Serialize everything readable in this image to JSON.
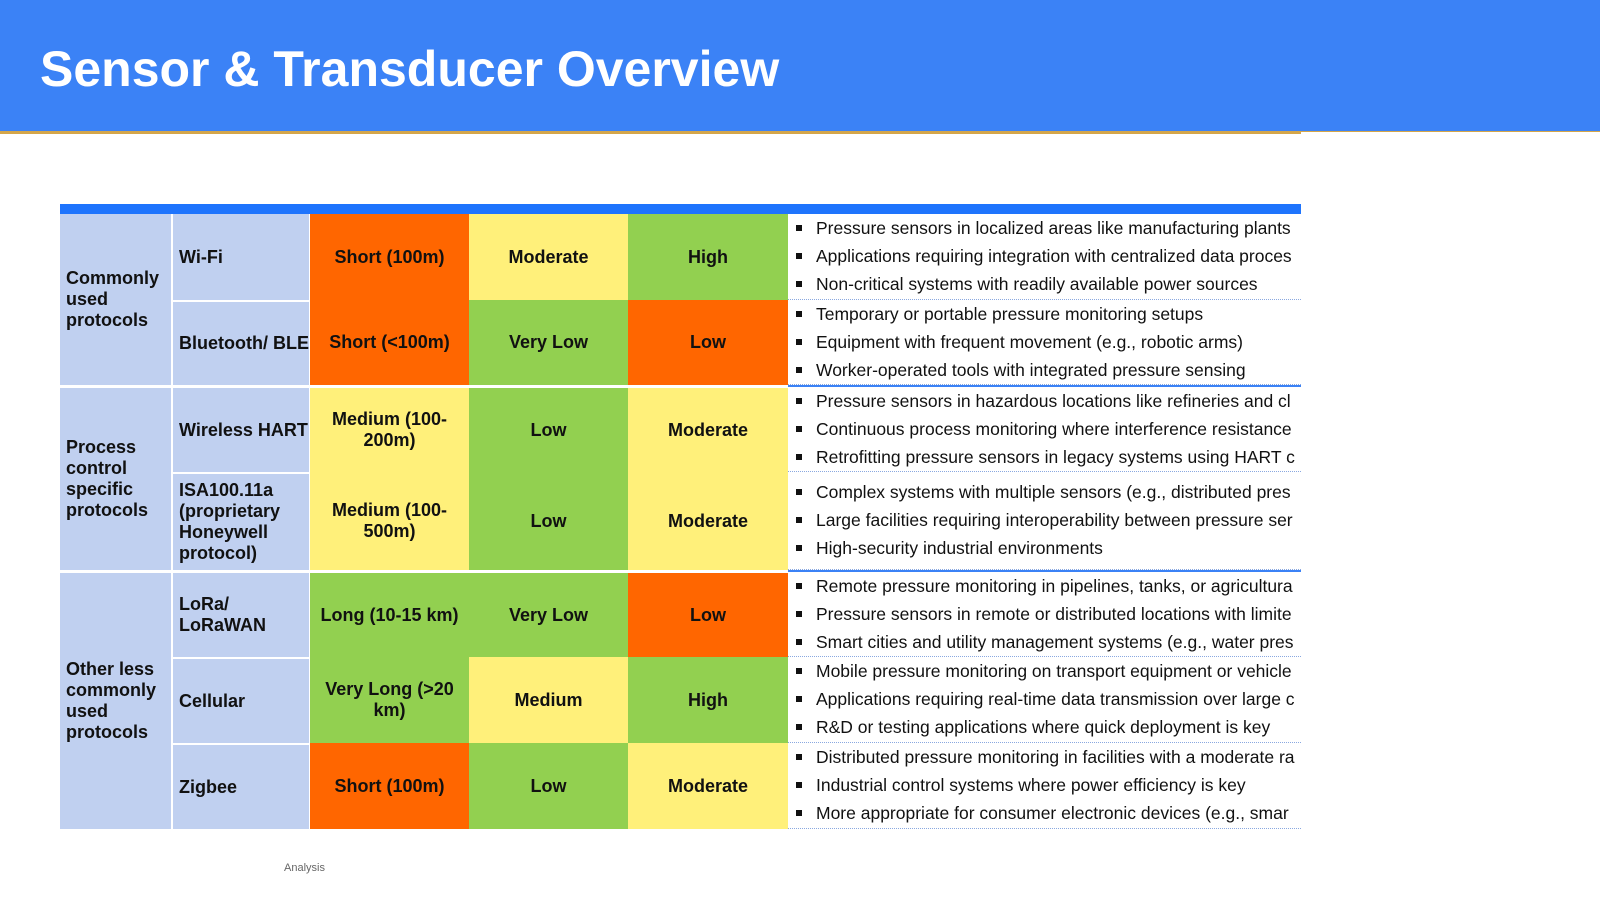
{
  "title": "Sensor & Transducer Overview",
  "footer": "Analysis",
  "groups": [
    "Commonly used protocols",
    "Process control specific protocols",
    "Other less commonly used protocols"
  ],
  "rows": [
    {
      "name": "Wi-Fi",
      "range": "Short (100m)",
      "power": "Moderate",
      "bandwidth": "High",
      "bullets": [
        "Pressure sensors in localized areas like manufacturing plants",
        "Applications requiring integration with centralized data proces",
        "Non-critical systems with readily available power sources"
      ]
    },
    {
      "name": "Bluetooth/ BLE",
      "range": "Short (<100m)",
      "power": "Very Low",
      "bandwidth": "Low",
      "bullets": [
        "Temporary or portable pressure monitoring setups",
        "Equipment with frequent movement (e.g., robotic arms)",
        "Worker-operated tools with integrated pressure sensing"
      ]
    },
    {
      "name": "Wireless HART",
      "range": "Medium (100-200m)",
      "power": "Low",
      "bandwidth": "Moderate",
      "bullets": [
        "Pressure sensors in hazardous locations like refineries and cl",
        "Continuous process monitoring where interference resistance",
        "Retrofitting pressure sensors in legacy systems using HART c"
      ]
    },
    {
      "name": "ISA100.11a (proprietary Honeywell protocol)",
      "range": "Medium (100-500m)",
      "power": "Low",
      "bandwidth": "Moderate",
      "bullets": [
        "Complex systems with multiple sensors (e.g., distributed pres",
        "Large facilities requiring interoperability between pressure ser",
        "High-security industrial environments"
      ]
    },
    {
      "name": "LoRa/ LoRaWAN",
      "range": "Long (10-15 km)",
      "power": "Very Low",
      "bandwidth": "Low",
      "bullets": [
        "Remote pressure monitoring in pipelines, tanks, or agricultura",
        "Pressure sensors in remote or distributed locations with limite",
        "Smart cities and utility management systems (e.g., water pres"
      ]
    },
    {
      "name": "Cellular",
      "range": "Very Long (>20 km)",
      "power": "Medium",
      "bandwidth": "High",
      "bullets": [
        "Mobile pressure monitoring on transport equipment or vehicle",
        "Applications requiring real-time data transmission over large c",
        "R&D or testing applications where quick deployment is key"
      ]
    },
    {
      "name": "Zigbee",
      "range": "Short (100m)",
      "power": "Low",
      "bandwidth": "Moderate",
      "bullets": [
        "Distributed pressure monitoring in facilities with a moderate ra",
        "Industrial control systems where power efficiency is key",
        "More appropriate for consumer electronic devices (e.g., smar"
      ]
    }
  ],
  "colors": {
    "header": "#3b82f6",
    "short": "#ff6600",
    "medium": "#fff07a",
    "good": "#92d050",
    "label": "#c0d0f0"
  }
}
